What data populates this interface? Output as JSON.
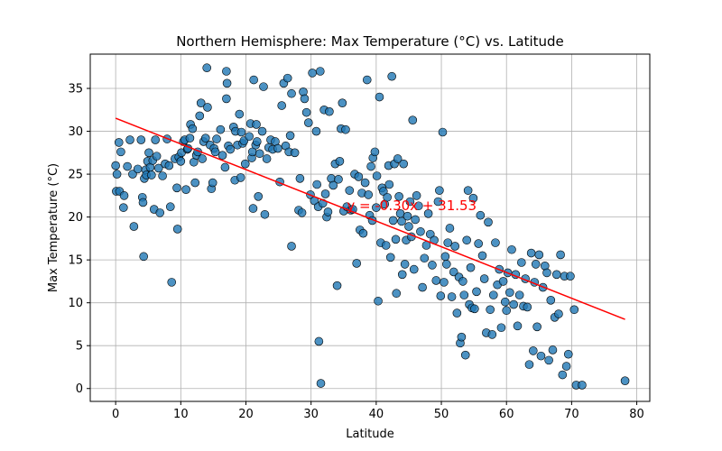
{
  "chart_data": {
    "type": "scatter",
    "title": "Northern Hemisphere: Max Temperature (°C) vs. Latitude",
    "xlabel": "Latitude",
    "ylabel": "Max Temperature (°C)",
    "xlim": [
      -3.9,
      82
    ],
    "ylim": [
      -1.5,
      39
    ],
    "xticks": [
      0,
      10,
      20,
      30,
      40,
      50,
      60,
      70,
      80
    ],
    "yticks": [
      0,
      5,
      10,
      15,
      20,
      25,
      30,
      35
    ],
    "grid": true,
    "point_color": "#1f77b4",
    "line_color": "#ff0000",
    "regression": {
      "slope": -0.3,
      "intercept": 31.53,
      "x_range": [
        0,
        78.2
      ],
      "label": "y = -0.30x + 31.53",
      "label_x": 35.5,
      "label_y": 20.8
    },
    "points": [
      [
        0,
        26
      ],
      [
        0.2,
        25
      ],
      [
        0.1,
        23
      ],
      [
        0.5,
        28.7
      ],
      [
        0.6,
        23
      ],
      [
        0.8,
        27.6
      ],
      [
        1.2,
        21.1
      ],
      [
        1.3,
        22.5
      ],
      [
        1.8,
        25.9
      ],
      [
        2.2,
        29
      ],
      [
        2.6,
        25
      ],
      [
        2.8,
        18.9
      ],
      [
        3.4,
        25.6
      ],
      [
        3.9,
        29
      ],
      [
        4.1,
        22.3
      ],
      [
        4.2,
        21.7
      ],
      [
        4.3,
        15.4
      ],
      [
        4.4,
        24.5
      ],
      [
        4.6,
        25.5
      ],
      [
        4.7,
        24.9
      ],
      [
        4.9,
        26.5
      ],
      [
        5.1,
        27.5
      ],
      [
        5.3,
        25.8
      ],
      [
        5.5,
        24.9
      ],
      [
        5.7,
        26.6
      ],
      [
        5.9,
        20.9
      ],
      [
        6.1,
        29
      ],
      [
        6.3,
        27.1
      ],
      [
        6.6,
        25.7
      ],
      [
        6.8,
        20.5
      ],
      [
        7.2,
        24.8
      ],
      [
        7.6,
        26.2
      ],
      [
        7.9,
        29.1
      ],
      [
        8.2,
        26
      ],
      [
        8.4,
        21.2
      ],
      [
        8.6,
        12.4
      ],
      [
        9.1,
        26.8
      ],
      [
        9.4,
        23.4
      ],
      [
        9.5,
        18.6
      ],
      [
        9.7,
        27
      ],
      [
        10,
        26.5
      ],
      [
        10.1,
        27.5
      ],
      [
        10.4,
        28.8
      ],
      [
        10.6,
        29
      ],
      [
        10.8,
        23.2
      ],
      [
        11,
        27.9
      ],
      [
        11.1,
        28
      ],
      [
        11.4,
        29.2
      ],
      [
        11.5,
        30.8
      ],
      [
        11.8,
        30.3
      ],
      [
        12,
        26.4
      ],
      [
        12.2,
        24
      ],
      [
        12.4,
        27.2
      ],
      [
        12.6,
        27.6
      ],
      [
        12.9,
        31.8
      ],
      [
        13.1,
        33.3
      ],
      [
        13.3,
        26.8
      ],
      [
        13.5,
        28.8
      ],
      [
        13.8,
        29.2
      ],
      [
        14,
        37.4
      ],
      [
        14.1,
        32.8
      ],
      [
        14.5,
        28.4
      ],
      [
        14.7,
        23.3
      ],
      [
        14.9,
        24
      ],
      [
        15.1,
        28
      ],
      [
        15.3,
        27.6
      ],
      [
        15.5,
        29.1
      ],
      [
        16.1,
        30.2
      ],
      [
        16.4,
        27.2
      ],
      [
        16.8,
        25.8
      ],
      [
        17,
        33.8
      ],
      [
        17,
        37
      ],
      [
        17.1,
        35.6
      ],
      [
        17.3,
        28.3
      ],
      [
        17.6,
        27.9
      ],
      [
        18.1,
        30.5
      ],
      [
        18.3,
        24.3
      ],
      [
        18.4,
        30
      ],
      [
        18.7,
        28.4
      ],
      [
        19,
        32
      ],
      [
        19.2,
        24.6
      ],
      [
        19.3,
        29.9
      ],
      [
        19.5,
        28.6
      ],
      [
        19.7,
        28.9
      ],
      [
        19.9,
        26.2
      ],
      [
        20.5,
        29.4
      ],
      [
        20.7,
        30.9
      ],
      [
        20.9,
        26.9
      ],
      [
        21,
        27.6
      ],
      [
        21.1,
        21
      ],
      [
        21.2,
        36
      ],
      [
        21.5,
        28.4
      ],
      [
        21.6,
        30.8
      ],
      [
        21.7,
        28.8
      ],
      [
        21.9,
        22.4
      ],
      [
        22.1,
        27.4
      ],
      [
        22.5,
        30
      ],
      [
        22.7,
        35.2
      ],
      [
        22.9,
        20.3
      ],
      [
        23.2,
        26.8
      ],
      [
        23.5,
        28.1
      ],
      [
        23.8,
        29
      ],
      [
        24.1,
        27.9
      ],
      [
        24.5,
        28.8
      ],
      [
        24.9,
        28
      ],
      [
        25.2,
        24.1
      ],
      [
        25.5,
        33
      ],
      [
        25.8,
        35.6
      ],
      [
        26.1,
        28.3
      ],
      [
        26.4,
        36.2
      ],
      [
        26.6,
        27.6
      ],
      [
        26.8,
        29.5
      ],
      [
        27,
        34.4
      ],
      [
        27,
        16.6
      ],
      [
        27.5,
        27.5
      ],
      [
        28.1,
        20.8
      ],
      [
        28.3,
        24.5
      ],
      [
        28.6,
        20.5
      ],
      [
        28.8,
        34.6
      ],
      [
        29,
        33.8
      ],
      [
        29.3,
        32.2
      ],
      [
        29.6,
        31
      ],
      [
        29.9,
        22.6
      ],
      [
        30.2,
        36.8
      ],
      [
        30.5,
        21.9
      ],
      [
        30.8,
        30
      ],
      [
        30.9,
        23.8
      ],
      [
        31.1,
        21.2
      ],
      [
        31.2,
        5.5
      ],
      [
        31.4,
        37
      ],
      [
        31.5,
        0.6
      ],
      [
        31.8,
        21.6
      ],
      [
        32,
        32.5
      ],
      [
        32.2,
        22.7
      ],
      [
        32.4,
        20
      ],
      [
        32.6,
        20.6
      ],
      [
        32.8,
        32.3
      ],
      [
        33.1,
        24.5
      ],
      [
        33.4,
        23.7
      ],
      [
        33.7,
        26.2
      ],
      [
        34,
        12
      ],
      [
        34.2,
        24.4
      ],
      [
        34.4,
        26.5
      ],
      [
        34.6,
        30.3
      ],
      [
        34.8,
        33.3
      ],
      [
        35,
        20.7
      ],
      [
        35.3,
        30.2
      ],
      [
        35.5,
        21.2
      ],
      [
        35.9,
        23.1
      ],
      [
        36.1,
        20.8
      ],
      [
        36.4,
        20.9
      ],
      [
        36.7,
        25
      ],
      [
        37,
        14.6
      ],
      [
        37.3,
        24.7
      ],
      [
        37.5,
        18.5
      ],
      [
        37.8,
        22.8
      ],
      [
        38,
        18.1
      ],
      [
        38.3,
        24
      ],
      [
        38.6,
        36
      ],
      [
        38.8,
        22.6
      ],
      [
        39,
        20.2
      ],
      [
        39.2,
        25.9
      ],
      [
        39.4,
        19.6
      ],
      [
        39.5,
        26.9
      ],
      [
        39.8,
        27.6
      ],
      [
        40,
        21.1
      ],
      [
        40.1,
        24.8
      ],
      [
        40.3,
        10.2
      ],
      [
        40.5,
        34
      ],
      [
        40.7,
        17
      ],
      [
        40.9,
        23.4
      ],
      [
        41.1,
        23
      ],
      [
        41.3,
        21.5
      ],
      [
        41.5,
        16.7
      ],
      [
        41.7,
        22.3
      ],
      [
        41.9,
        26
      ],
      [
        42,
        23.8
      ],
      [
        42.2,
        15.3
      ],
      [
        42.4,
        36.4
      ],
      [
        42.6,
        19.6
      ],
      [
        42.8,
        26.2
      ],
      [
        43,
        17.4
      ],
      [
        43.1,
        11.1
      ],
      [
        43.3,
        26.8
      ],
      [
        43.5,
        22.4
      ],
      [
        43.7,
        20.4
      ],
      [
        43.9,
        19.5
      ],
      [
        44,
        13.3
      ],
      [
        44.2,
        26.2
      ],
      [
        44.4,
        14.5
      ],
      [
        44.6,
        17.3
      ],
      [
        44.8,
        20.1
      ],
      [
        45,
        18.9
      ],
      [
        45.2,
        21.8
      ],
      [
        45.4,
        17.7
      ],
      [
        45.6,
        31.3
      ],
      [
        45.8,
        13.9
      ],
      [
        46,
        19.7
      ],
      [
        46.2,
        22.5
      ],
      [
        46.5,
        21.3
      ],
      [
        46.8,
        18.3
      ],
      [
        47.1,
        11.8
      ],
      [
        47.4,
        15.2
      ],
      [
        47.7,
        16.7
      ],
      [
        48,
        20.4
      ],
      [
        48.3,
        18
      ],
      [
        48.6,
        14.4
      ],
      [
        48.9,
        17.3
      ],
      [
        49.2,
        12.6
      ],
      [
        49.5,
        21.8
      ],
      [
        49.7,
        23.1
      ],
      [
        49.9,
        10.8
      ],
      [
        50.2,
        29.9
      ],
      [
        50.4,
        12.4
      ],
      [
        50.6,
        15.4
      ],
      [
        50.8,
        14.5
      ],
      [
        51,
        17
      ],
      [
        51.3,
        18.7
      ],
      [
        51.6,
        10.7
      ],
      [
        51.9,
        13.6
      ],
      [
        52.1,
        16.6
      ],
      [
        52.4,
        8.8
      ],
      [
        52.7,
        13
      ],
      [
        52.9,
        5.3
      ],
      [
        53.1,
        6
      ],
      [
        53.3,
        12.5
      ],
      [
        53.5,
        10.9
      ],
      [
        53.7,
        3.9
      ],
      [
        53.9,
        17.3
      ],
      [
        54.1,
        23.1
      ],
      [
        54.3,
        9.8
      ],
      [
        54.5,
        14.1
      ],
      [
        54.7,
        9.4
      ],
      [
        54.9,
        22.2
      ],
      [
        55.1,
        9.3
      ],
      [
        55.4,
        11.3
      ],
      [
        55.7,
        16.9
      ],
      [
        56,
        20.2
      ],
      [
        56.3,
        15.5
      ],
      [
        56.6,
        12.8
      ],
      [
        56.9,
        6.5
      ],
      [
        57.2,
        19.4
      ],
      [
        57.5,
        9.2
      ],
      [
        57.8,
        6.3
      ],
      [
        58,
        10.9
      ],
      [
        58.3,
        17
      ],
      [
        58.6,
        12.1
      ],
      [
        58.9,
        13.9
      ],
      [
        59.2,
        7.1
      ],
      [
        59.5,
        12.5
      ],
      [
        59.8,
        10.1
      ],
      [
        60,
        9.1
      ],
      [
        60.2,
        13.5
      ],
      [
        60.5,
        11.2
      ],
      [
        60.8,
        16.2
      ],
      [
        61.1,
        9.8
      ],
      [
        61.4,
        13.3
      ],
      [
        61.7,
        7.3
      ],
      [
        62,
        10.9
      ],
      [
        62.3,
        14.7
      ],
      [
        62.6,
        9.6
      ],
      [
        62.9,
        12.8
      ],
      [
        63.2,
        9.5
      ],
      [
        63.5,
        2.8
      ],
      [
        63.8,
        15.8
      ],
      [
        64.1,
        4.4
      ],
      [
        64.3,
        12.4
      ],
      [
        64.5,
        14.5
      ],
      [
        64.7,
        7.2
      ],
      [
        65,
        15.6
      ],
      [
        65.3,
        3.8
      ],
      [
        65.6,
        11.8
      ],
      [
        65.9,
        14.3
      ],
      [
        66.2,
        13.5
      ],
      [
        66.5,
        3.3
      ],
      [
        66.8,
        10.3
      ],
      [
        67.1,
        4.5
      ],
      [
        67.4,
        8.3
      ],
      [
        67.7,
        13.3
      ],
      [
        68,
        8.7
      ],
      [
        68.3,
        15.6
      ],
      [
        68.6,
        1.6
      ],
      [
        68.9,
        13.1
      ],
      [
        69.2,
        2.6
      ],
      [
        69.5,
        4
      ],
      [
        69.8,
        13.1
      ],
      [
        70.4,
        9.2
      ],
      [
        70.7,
        0.4
      ],
      [
        71.6,
        0.4
      ],
      [
        78.2,
        0.9
      ]
    ]
  }
}
